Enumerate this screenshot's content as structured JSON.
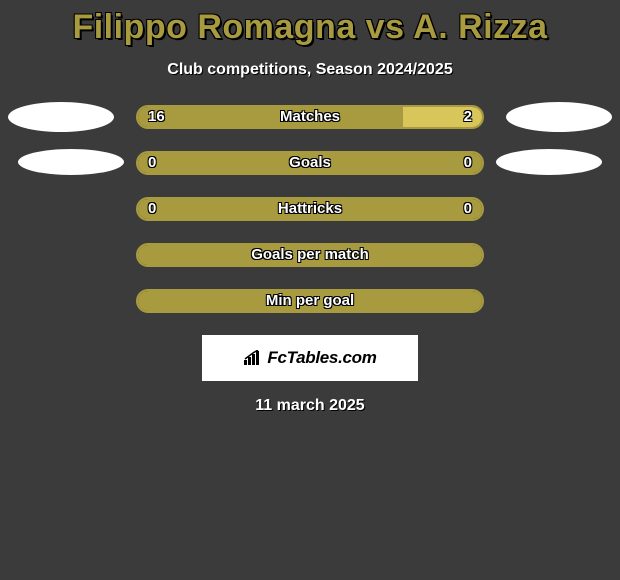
{
  "title": "Filippo Romagna vs A. Rizza",
  "subtitle": "Club competitions, Season 2024/2025",
  "date": "11 march 2025",
  "colors": {
    "background": "#3b3b3b",
    "title_color": "#a89a3e",
    "text_color": "#ffffff",
    "photo_bg": "#ffffff",
    "watermark_bg": "#ffffff"
  },
  "watermark_text": "FcTables.com",
  "stats": [
    {
      "label": "Matches",
      "left_value": "16",
      "right_value": "2",
      "left_pct": 77,
      "left_color": "#a89a3e",
      "right_color": "#d9c65a",
      "border_color": "#a89a3e",
      "label_text_color": "#ffffff",
      "value_text_color": "#ffffff",
      "show_left_photo": true,
      "show_right_photo": true,
      "photo_variant": 1
    },
    {
      "label": "Goals",
      "left_value": "0",
      "right_value": "0",
      "left_pct": 50,
      "left_color": "#a89a3e",
      "right_color": "#a89a3e",
      "border_color": "#a89a3e",
      "label_text_color": "#ffffff",
      "value_text_color": "#ffffff",
      "show_left_photo": true,
      "show_right_photo": true,
      "photo_variant": 2
    },
    {
      "label": "Hattricks",
      "left_value": "0",
      "right_value": "0",
      "left_pct": 50,
      "left_color": "#a89a3e",
      "right_color": "#a89a3e",
      "border_color": "#a89a3e",
      "label_text_color": "#ffffff",
      "value_text_color": "#ffffff",
      "show_left_photo": false,
      "show_right_photo": false,
      "photo_variant": 0
    },
    {
      "label": "Goals per match",
      "left_value": "",
      "right_value": "",
      "left_pct": 100,
      "left_color": "#a89a3e",
      "right_color": "#a89a3e",
      "border_color": "#a89a3e",
      "label_text_color": "#ffffff",
      "value_text_color": "#ffffff",
      "show_left_photo": false,
      "show_right_photo": false,
      "photo_variant": 0
    },
    {
      "label": "Min per goal",
      "left_value": "",
      "right_value": "",
      "left_pct": 100,
      "left_color": "#a89a3e",
      "right_color": "#a89a3e",
      "border_color": "#a89a3e",
      "label_text_color": "#ffffff",
      "value_text_color": "#ffffff",
      "show_left_photo": false,
      "show_right_photo": false,
      "photo_variant": 0
    }
  ]
}
